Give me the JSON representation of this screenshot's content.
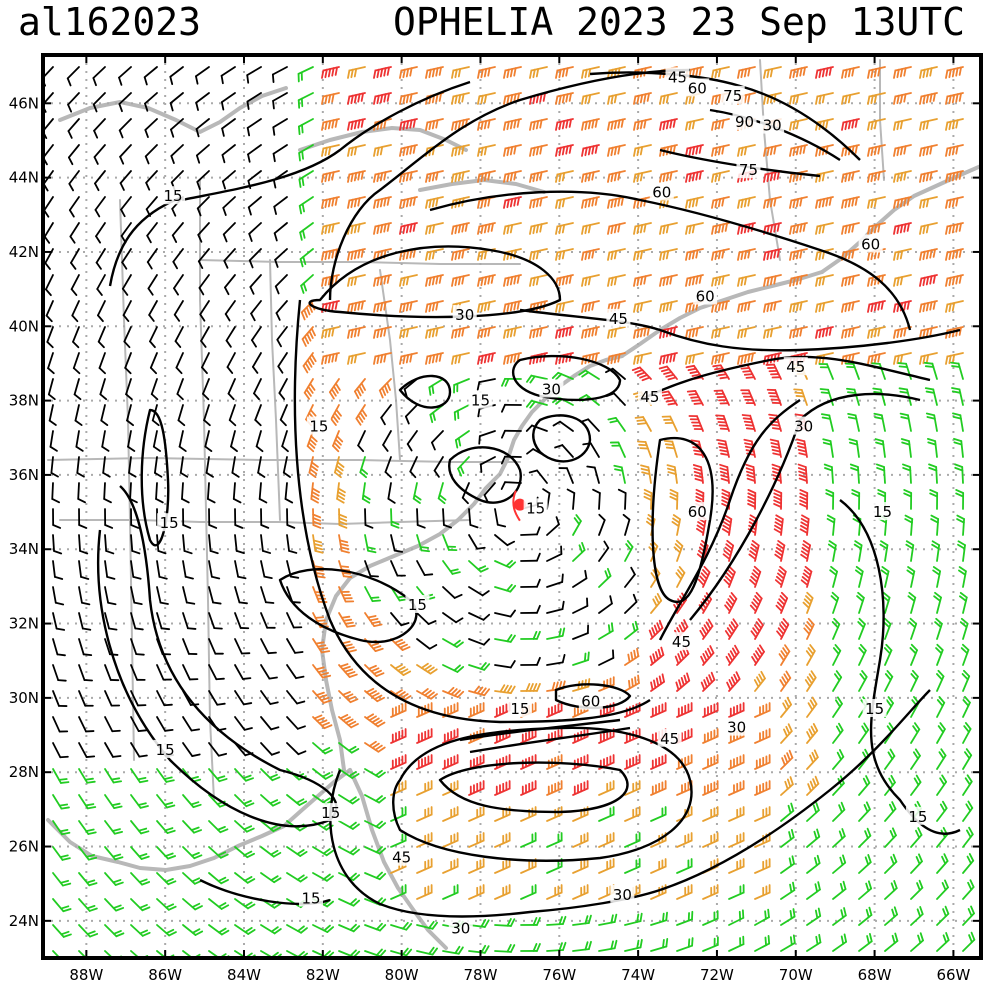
{
  "header": {
    "storm_id": "al162023",
    "title": "OPHELIA 2023 23 Sep 13UTC"
  },
  "axes": {
    "lon_labels": [
      "88W",
      "86W",
      "84W",
      "82W",
      "80W",
      "78W",
      "76W",
      "74W",
      "72W",
      "70W",
      "68W",
      "66W"
    ],
    "lon_values": [
      -88,
      -86,
      -84,
      -82,
      -80,
      -78,
      -76,
      -74,
      -72,
      -70,
      -68,
      -66
    ],
    "lat_labels": [
      "24N",
      "26N",
      "28N",
      "30N",
      "32N",
      "34N",
      "36N",
      "38N",
      "40N",
      "42N",
      "44N",
      "46N"
    ],
    "lat_values": [
      24,
      26,
      28,
      30,
      32,
      34,
      36,
      38,
      40,
      42,
      44,
      46
    ],
    "lon_range": [
      -89.1,
      -65.3
    ],
    "lat_range": [
      23.0,
      47.3
    ]
  },
  "storm_center": {
    "lon": -77.0,
    "lat": 35.2,
    "color": "#ff3333"
  },
  "contour_labels": [
    {
      "text": "15",
      "lon": -85.8,
      "lat": 43.5
    },
    {
      "text": "15",
      "lon": -82.1,
      "lat": 37.3
    },
    {
      "text": "15",
      "lon": -85.9,
      "lat": 34.7
    },
    {
      "text": "15",
      "lon": -78.0,
      "lat": 38.0
    },
    {
      "text": "15",
      "lon": -76.6,
      "lat": 35.1
    },
    {
      "text": "15",
      "lon": -79.6,
      "lat": 32.5
    },
    {
      "text": "15",
      "lon": -86.0,
      "lat": 28.6
    },
    {
      "text": "15",
      "lon": -81.8,
      "lat": 26.9
    },
    {
      "text": "15",
      "lon": -82.3,
      "lat": 24.6
    },
    {
      "text": "15",
      "lon": -77.0,
      "lat": 29.7
    },
    {
      "text": "15",
      "lon": -67.8,
      "lat": 35.0
    },
    {
      "text": "15",
      "lon": -68.0,
      "lat": 29.7
    },
    {
      "text": "15",
      "lon": -66.9,
      "lat": 26.8
    },
    {
      "text": "30",
      "lon": -78.4,
      "lat": 40.3
    },
    {
      "text": "30",
      "lon": -76.2,
      "lat": 38.3
    },
    {
      "text": "30",
      "lon": -71.5,
      "lat": 29.2
    },
    {
      "text": "30",
      "lon": -69.8,
      "lat": 37.3
    },
    {
      "text": "30",
      "lon": -74.4,
      "lat": 24.7
    },
    {
      "text": "30",
      "lon": -78.5,
      "lat": 23.8
    },
    {
      "text": "30",
      "lon": -70.6,
      "lat": 45.4
    },
    {
      "text": "45",
      "lon": -73.0,
      "lat": 46.7
    },
    {
      "text": "45",
      "lon": -74.5,
      "lat": 40.2
    },
    {
      "text": "45",
      "lon": -73.7,
      "lat": 38.1
    },
    {
      "text": "45",
      "lon": -70.0,
      "lat": 38.9
    },
    {
      "text": "45",
      "lon": -72.9,
      "lat": 31.5
    },
    {
      "text": "45",
      "lon": -73.2,
      "lat": 28.9
    },
    {
      "text": "45",
      "lon": -80.0,
      "lat": 25.7
    },
    {
      "text": "60",
      "lon": -72.5,
      "lat": 46.4
    },
    {
      "text": "60",
      "lon": -73.4,
      "lat": 43.6
    },
    {
      "text": "60",
      "lon": -68.1,
      "lat": 42.2
    },
    {
      "text": "60",
      "lon": -72.3,
      "lat": 40.8
    },
    {
      "text": "60",
      "lon": -72.5,
      "lat": 35.0
    },
    {
      "text": "60",
      "lon": -75.2,
      "lat": 29.9
    },
    {
      "text": "75",
      "lon": -71.6,
      "lat": 46.2
    },
    {
      "text": "75",
      "lon": -71.2,
      "lat": 44.2
    },
    {
      "text": "90",
      "lon": -71.3,
      "lat": 45.5
    }
  ],
  "colors": {
    "calm_barb": "#000000",
    "barb_15_30": "#22cc22",
    "barb_30_45": "#e8a030",
    "barb_45_60": "#f08030",
    "barb_60_plus": "#ee3333",
    "coastline": "#b8b8b8",
    "grid": "#aaaaaa",
    "contour": "#000000"
  }
}
